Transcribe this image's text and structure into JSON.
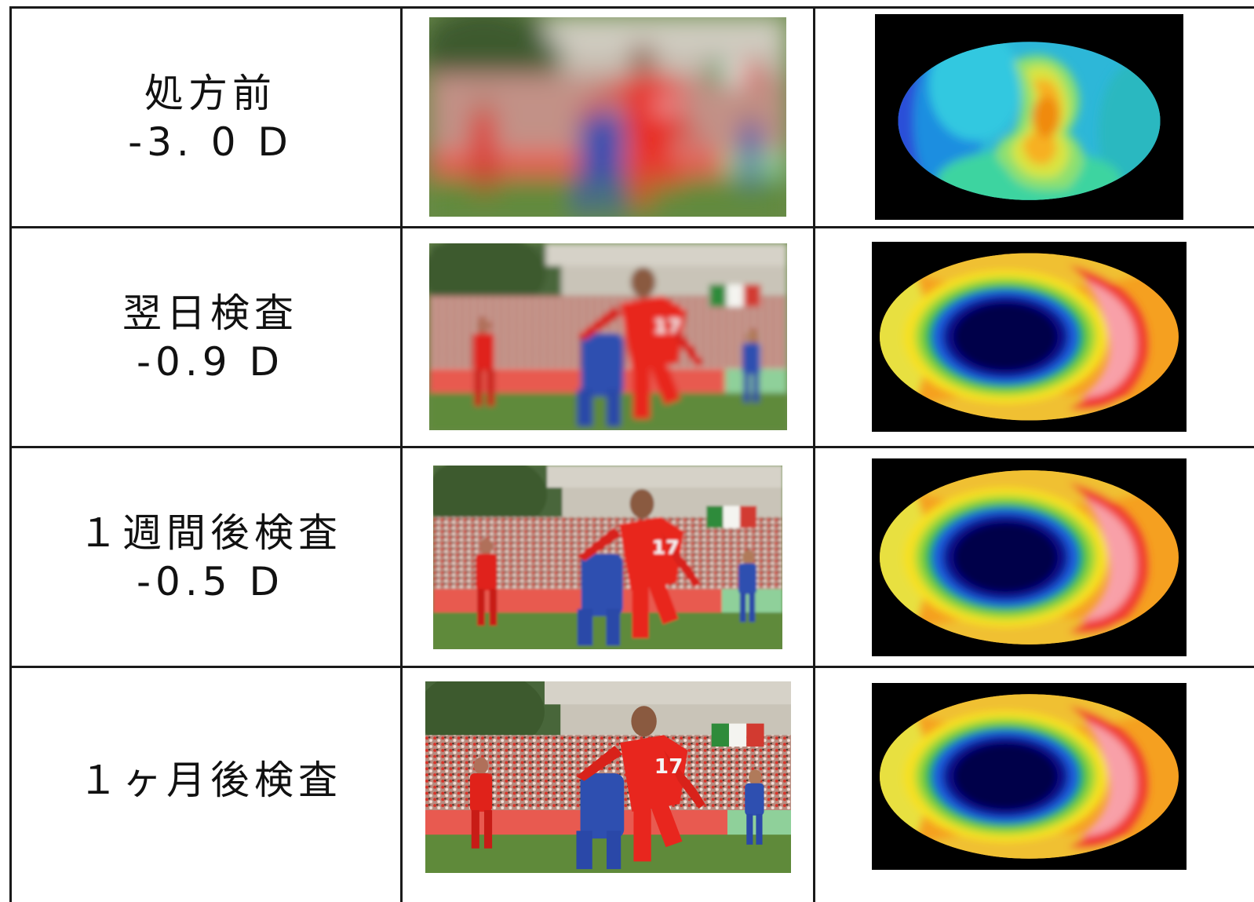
{
  "rows": [
    {
      "label": "処方前",
      "value": "-3. 0 D",
      "photo_blur": 16,
      "topo_style": "pre-treatment"
    },
    {
      "label": "翌日検査",
      "value": "-0.9 D",
      "photo_blur": 4,
      "topo_style": "post-treatment"
    },
    {
      "label": "１週間後検査",
      "value": "-0.5 D",
      "photo_blur": 1.6,
      "topo_style": "post-treatment"
    },
    {
      "label": "１ヶ月後検査",
      "value": "",
      "photo_blur": 0,
      "topo_style": "post-treatment"
    }
  ],
  "colors": {
    "border": "#1a1a1a",
    "text": "#111111",
    "topo_bg": "#000000"
  },
  "icons": [
    "soccer-photo",
    "corneal-topography-map"
  ]
}
